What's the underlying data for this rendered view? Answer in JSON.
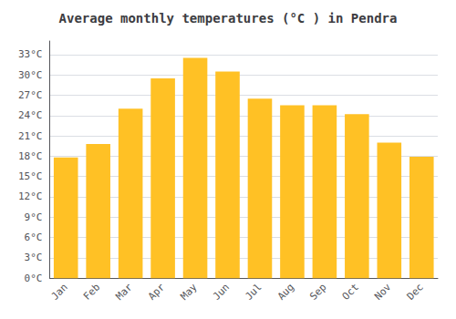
{
  "chart_data": {
    "type": "bar",
    "title": "Average monthly temperatures (°C ) in Pendra",
    "categories": [
      "Jan",
      "Feb",
      "Mar",
      "Apr",
      "May",
      "Jun",
      "Jul",
      "Aug",
      "Sep",
      "Oct",
      "Nov",
      "Dec"
    ],
    "values": [
      17.8,
      19.8,
      25.0,
      29.5,
      32.5,
      30.5,
      26.5,
      25.5,
      25.5,
      24.2,
      20.0,
      17.9
    ],
    "color": "#FFC125",
    "ylim": [
      0,
      35
    ],
    "yticks": [
      {
        "value": 0,
        "label": "0°C"
      },
      {
        "value": 3,
        "label": "3°C"
      },
      {
        "value": 6,
        "label": "6°C"
      },
      {
        "value": 9,
        "label": "9°C"
      },
      {
        "value": 12,
        "label": "12°C"
      },
      {
        "value": 15,
        "label": "15°C"
      },
      {
        "value": 18,
        "label": "18°C"
      },
      {
        "value": 21,
        "label": "21°C"
      },
      {
        "value": 24,
        "label": "24°C"
      },
      {
        "value": 27,
        "label": "27°C"
      },
      {
        "value": 30,
        "label": "30°C"
      },
      {
        "value": 33,
        "label": "33°C"
      }
    ],
    "grid": true
  }
}
